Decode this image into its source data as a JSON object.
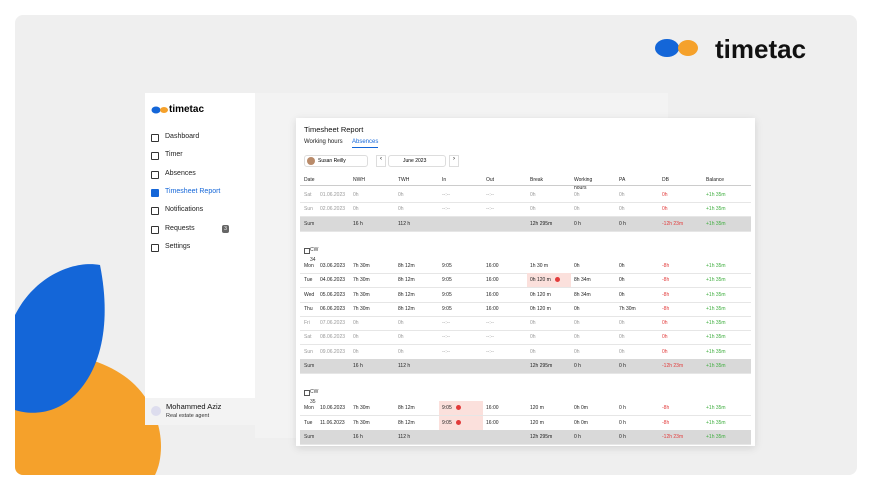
{
  "brand": "timetac",
  "sidebar": {
    "brand": "timetac",
    "nav": [
      "Dashboard",
      "Timer",
      "Absences",
      "Timesheet Report",
      "Notifications",
      "Requests",
      "Settings"
    ],
    "active": 3,
    "badge": "3",
    "user": {
      "name": "Mohammed Aziz",
      "role": "Real estate agent"
    }
  },
  "report": {
    "title": "Timesheet Report",
    "tabs": [
      "Working hours",
      "Absences"
    ],
    "active_tab": 1,
    "person": "Susan Reilly",
    "month": "June 2023",
    "columns": [
      "Date",
      "NWH",
      "TWH",
      "In",
      "Out",
      "Break",
      "Working hours",
      "PA",
      "DB",
      "Balance"
    ],
    "groups": [
      {
        "rows": [
          {
            "day": "Sat",
            "date": "01.06.2023",
            "muted": true,
            "cells": [
              "0h",
              "0h",
              "--:--",
              "--:--",
              "0h",
              "0h",
              "0h",
              "0h",
              "+1h 35m"
            ]
          },
          {
            "day": "Sun",
            "date": "02.06.2023",
            "muted": true,
            "cells": [
              "0h",
              "0h",
              "--:--",
              "--:--",
              "0h",
              "0h",
              "0h",
              "0h",
              "+1h 35m"
            ]
          }
        ],
        "sum": {
          "label": "Sum",
          "cells": [
            "16 h",
            "112 h",
            null,
            null,
            "12h 295m",
            "0 h",
            "0 h",
            "-12h 23m",
            "+1h 35m"
          ]
        }
      },
      {
        "week": "CW 34",
        "rows": [
          {
            "day": "Mon",
            "date": "03.06.2023",
            "cells": [
              "7h 30m",
              "8h 12m",
              "9:05",
              "16:00",
              "1h 30 m",
              "0h",
              "0h",
              "-8h",
              "+1h 35m"
            ]
          },
          {
            "day": "Tue",
            "date": "04.06.2023",
            "alerts": [
              4
            ],
            "cells": [
              "7h 30m",
              "8h 12m",
              "9:05",
              "16:00",
              "0h 120 m",
              "8h 34m",
              "0h",
              "-8h",
              "+1h 35m"
            ]
          },
          {
            "day": "Wed",
            "date": "05.06.2023",
            "cells": [
              "7h 30m",
              "8h 12m",
              "9:05",
              "16:00",
              "0h 120 m",
              "8h 34m",
              "0h",
              "-8h",
              "+1h 35m"
            ]
          },
          {
            "day": "Thu",
            "date": "06.06.2023",
            "cells": [
              "7h 30m",
              "8h 12m",
              "9:05",
              "16:00",
              "0h 120 m",
              "0h",
              "7h 30m",
              "-8h",
              "+1h 35m"
            ]
          },
          {
            "day": "Fri",
            "date": "07.06.2023",
            "muted": true,
            "cells": [
              "0h",
              "0h",
              "--:--",
              "--:--",
              "0h",
              "0h",
              "0h",
              "0h",
              "+1h 35m"
            ]
          },
          {
            "day": "Sat",
            "date": "08.06.2023",
            "muted": true,
            "cells": [
              "0h",
              "0h",
              "--:--",
              "--:--",
              "0h",
              "0h",
              "0h",
              "0h",
              "+1h 35m"
            ]
          },
          {
            "day": "Sun",
            "date": "09.06.2023",
            "muted": true,
            "cells": [
              "0h",
              "0h",
              "--:--",
              "--:--",
              "0h",
              "0h",
              "0h",
              "0h",
              "+1h 35m"
            ]
          }
        ],
        "sum": {
          "label": "Sum",
          "cells": [
            "16 h",
            "112 h",
            null,
            null,
            "12h 295m",
            "0 h",
            "0 h",
            "-12h 23m",
            "+1h 35m"
          ]
        }
      },
      {
        "week": "CW 35",
        "rows": [
          {
            "day": "Mon",
            "date": "10.06.2023",
            "alerts": [
              2
            ],
            "cells": [
              "7h 30m",
              "8h 12m",
              "9:05",
              "16:00",
              "120 m",
              "0h 0m",
              "0 h",
              "-8h",
              "+1h 35m"
            ]
          },
          {
            "day": "Tue",
            "date": "11.06.2023",
            "alerts": [
              2
            ],
            "cells": [
              "7h 30m",
              "8h 12m",
              "9:05",
              "16:00",
              "120 m",
              "0h 0m",
              "0 h",
              "-8h",
              "+1h 35m"
            ]
          }
        ],
        "sum": {
          "label": "Sum",
          "cells": [
            "16 h",
            "112 h",
            null,
            null,
            "12h 295m",
            "0 h",
            "0 h",
            "-12h 23m",
            "+1h 35m"
          ]
        }
      }
    ]
  }
}
